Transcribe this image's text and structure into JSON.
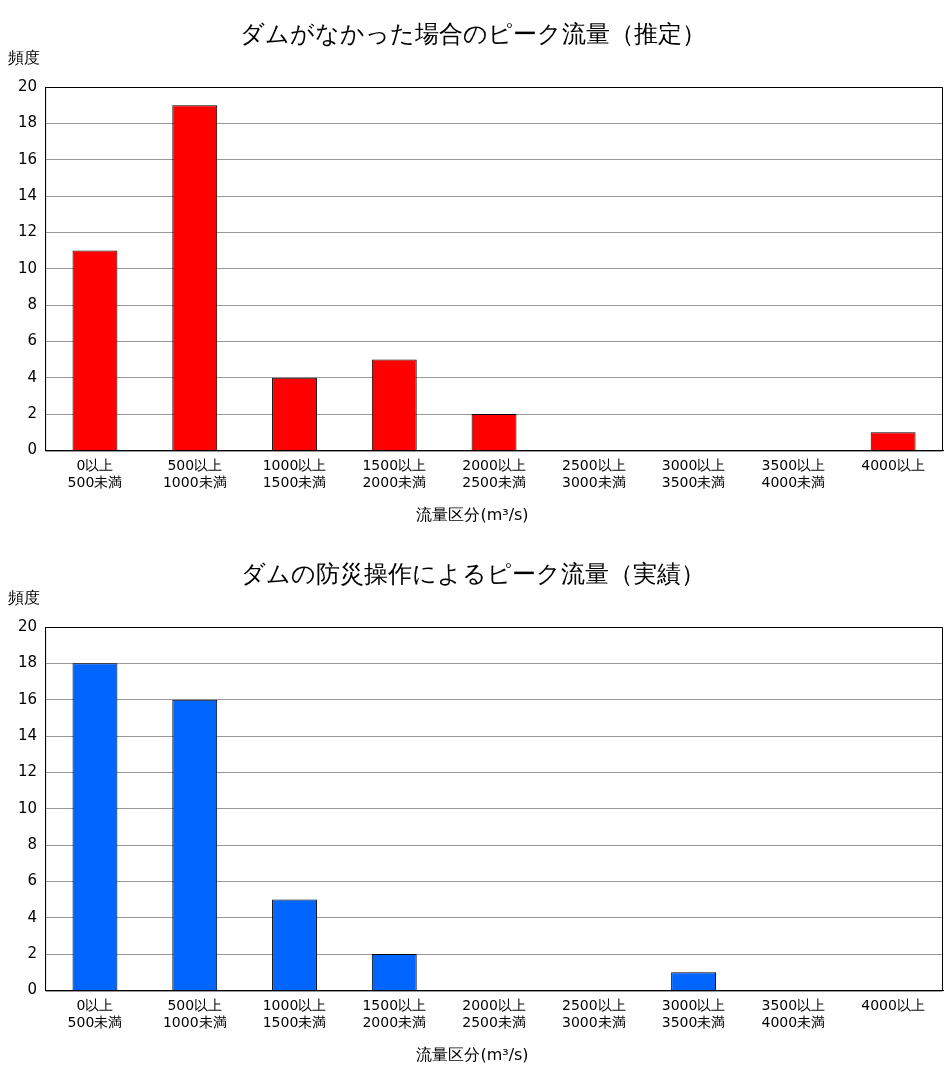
{
  "chart_data": [
    {
      "type": "bar",
      "title": "ダムがなかった場合のピーク流量（推定）",
      "ylabel": "頻度",
      "xlabel": "流量区分(m³/s)",
      "categories": [
        "0以上\n500未満",
        "500以上\n1000未満",
        "1000以上\n1500未満",
        "1500以上\n2000未満",
        "2000以上\n2500未満",
        "2500以上\n3000未満",
        "3000以上\n3500未満",
        "3500以上\n4000未満",
        "4000以上"
      ],
      "values": [
        11,
        19,
        4,
        5,
        2,
        0,
        0,
        0,
        1
      ],
      "color": "#ff0000",
      "ylim": [
        0,
        20
      ],
      "yticks": [
        0,
        2,
        4,
        6,
        8,
        10,
        12,
        14,
        16,
        18,
        20
      ],
      "grid": "y",
      "legend": false
    },
    {
      "type": "bar",
      "title": "ダムの防災操作によるピーク流量（実績）",
      "ylabel": "頻度",
      "xlabel": "流量区分(m³/s)",
      "categories": [
        "0以上\n500未満",
        "500以上\n1000未満",
        "1000以上\n1500未満",
        "1500以上\n2000未満",
        "2000以上\n2500未満",
        "2500以上\n3000未満",
        "3000以上\n3500未満",
        "3500以上\n4000未満",
        "4000以上"
      ],
      "values": [
        18,
        16,
        5,
        2,
        0,
        0,
        1,
        0,
        0
      ],
      "color": "#0066ff",
      "ylim": [
        0,
        20
      ],
      "yticks": [
        0,
        2,
        4,
        6,
        8,
        10,
        12,
        14,
        16,
        18,
        20
      ],
      "grid": "y",
      "legend": false
    }
  ]
}
